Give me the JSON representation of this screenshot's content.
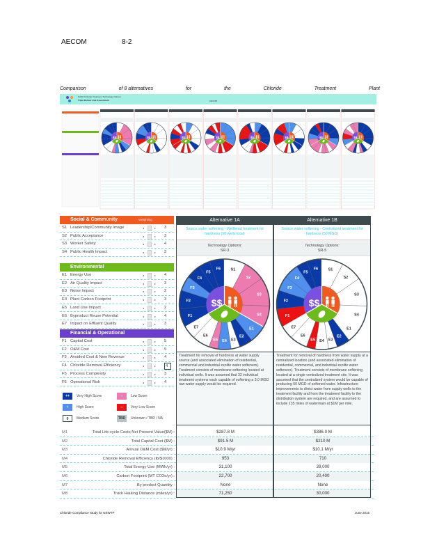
{
  "header": {
    "company": "AECOM",
    "section": "8-2"
  },
  "caption": [
    "Comparison",
    "of 8 alternatives",
    "for",
    "the",
    "Chloride",
    "Treatment",
    "Plant"
  ],
  "thumbnail": {
    "app_title": "NASD Chloride Treatment Technology Options",
    "app_subtitle": "Triple Bottom Line Assessment",
    "brand": "AECOM",
    "alternatives": [
      [
        "M",
        "L",
        "L",
        "L",
        "H",
        "VH",
        "M",
        "H",
        "L",
        "M",
        "M",
        "VH",
        "VH",
        "H",
        "VH",
        "VH",
        "VH"
      ],
      [
        "M",
        "M",
        "M",
        "M",
        "M",
        "VH",
        "M",
        "M",
        "VL",
        "M",
        "M",
        "VL",
        "VH",
        "H",
        "H",
        "VH",
        "VH"
      ],
      [
        "H",
        "M",
        "M",
        "M",
        "VH",
        "M",
        "VL",
        "M",
        "VL",
        "M",
        "VL",
        "VL",
        "VH",
        "VL",
        "M",
        "VL",
        "M"
      ],
      [
        "H",
        "H",
        "H",
        "H",
        "VL",
        "VL",
        "M",
        "VL",
        "M",
        "L",
        "M",
        "L",
        "M",
        "VH",
        "VL",
        "M",
        "VL"
      ],
      [
        "H",
        "VH",
        "VH",
        "VH",
        "VL",
        "VL",
        "M",
        "VL",
        "L",
        "M",
        "M",
        "VH",
        "VL",
        "VL",
        "VL",
        "VH",
        "M"
      ],
      [
        "H",
        "M",
        "M",
        "VH",
        "VH",
        "M",
        "VH",
        "M",
        "VL",
        "M",
        "M",
        "VL",
        "VL",
        "VH",
        "VL",
        "VL",
        "H"
      ],
      [
        "VH",
        "VH",
        "VH",
        "H",
        "L",
        "M",
        "L",
        "L",
        "M",
        "L",
        "L",
        "L",
        "H",
        "VH",
        "VH",
        "VL",
        "VH"
      ],
      [
        "VH",
        "VH",
        "VH",
        "VH",
        "M",
        "VH",
        "L",
        "M",
        "VH",
        "L",
        "M",
        "H",
        "VL",
        "L",
        "M",
        "L",
        "L"
      ]
    ]
  },
  "criteria": {
    "weighting_label": "Weighting",
    "sections": [
      {
        "title": "Social & Community",
        "color": "#f05a1e",
        "items": [
          {
            "code": "S1",
            "label": "Leadership/Community Image",
            "weight": 3
          },
          {
            "code": "S2",
            "label": "Public Acceptance",
            "weight": 3
          },
          {
            "code": "S3",
            "label": "Worker Safety",
            "weight": 4
          },
          {
            "code": "S4",
            "label": "Public Health Impact",
            "weight": 3
          }
        ]
      },
      {
        "title": "Environmental",
        "color": "#6cbb1a",
        "items": [
          {
            "code": "E1",
            "label": "Energy Use",
            "weight": 4
          },
          {
            "code": "E2",
            "label": "Air Quality Impact",
            "weight": 3
          },
          {
            "code": "E3",
            "label": "Noise Impact",
            "weight": 2
          },
          {
            "code": "E4",
            "label": "Plant Carbon Footprint",
            "weight": 3
          },
          {
            "code": "E5",
            "label": "Land Use Impact",
            "weight": 2
          },
          {
            "code": "E6",
            "label": "Byproduct Reuse Potential",
            "weight": 4
          },
          {
            "code": "E7",
            "label": "Impact on Effluent Quality",
            "weight": 3
          }
        ]
      },
      {
        "title": "Financial & Operational",
        "color": "#6a3fd0",
        "items": [
          {
            "code": "F1",
            "label": "Capital Cost",
            "weight": 5
          },
          {
            "code": "F2",
            "label": "O&M Cost",
            "weight": 5
          },
          {
            "code": "F3",
            "label": "Avoided Cost & New Revenue",
            "weight": 4
          },
          {
            "code": "F4",
            "label": "Chloride Removal Efficiency",
            "weight": 4
          },
          {
            "code": "F5",
            "label": "Process Complexity",
            "weight": 3
          },
          {
            "code": "F6",
            "label": "Operational Risk",
            "weight": 4
          }
        ]
      }
    ]
  },
  "legend": [
    {
      "code": "VH",
      "symbol": "++",
      "label": "Very High Score",
      "color": "#0a3aa8"
    },
    {
      "code": "H",
      "symbol": "+",
      "label": "High Score",
      "color": "#4f8fee"
    },
    {
      "code": "M",
      "symbol": "0",
      "label": "Medium Score",
      "color": "#ffffff"
    },
    {
      "code": "L",
      "symbol": "-",
      "label": "Low Score",
      "color": "#ee7bb0"
    },
    {
      "code": "VL",
      "symbol": "--",
      "label": "Very Low Score",
      "color": "#ee1111"
    },
    {
      "code": "TBD",
      "symbol": "TBD",
      "label": "Unknown / TBD / NA",
      "color": "#b8c4c4"
    }
  ],
  "metrics": [
    {
      "code": "M1",
      "label": "Total Life-cycle Costs Net Present Value($M) :"
    },
    {
      "code": "M2",
      "label": "Total Capital Cost ($M) :"
    },
    {
      "code": "M3",
      "label": "Annual O&M Cost ($M/yr) :"
    },
    {
      "code": "M4",
      "label": "Chloride Removal Efficiency (lb/$1000) :"
    },
    {
      "code": "M5",
      "label": "Total Energy Use (MWh/yr) :"
    },
    {
      "code": "M6",
      "label": "Carbon Footprint (MT CO2e/yr) :"
    },
    {
      "code": "M7",
      "label": "By product Quantity :"
    },
    {
      "code": "M8",
      "label": "Truck Hauling Distance (miles/yr) :"
    }
  ],
  "alternatives": [
    {
      "name": "Alternative 1A",
      "title": "Source water softening - Wellhead treatment for hardness (50 wells total)",
      "tech_label": "Technology Options:",
      "tech": "SR-3",
      "scores": [
        "M",
        "L",
        "L",
        "L",
        "H",
        "VH",
        "M",
        "H",
        "L",
        "M",
        "M",
        "VH",
        "VH",
        "H",
        "VH",
        "VH",
        "VH"
      ],
      "description": "Treatment for removal of hardness at water supply source (and associated elimination of residential, commercial and industrial zeolite water softeners). Treatment consists of membrane softening located at individual wells. It was assumed that 32 individual treatment systems each capable of softening a 3.0 MGD raw water supply would be required.",
      "metric_values": [
        "$287.8 M",
        "$91.5 M",
        "$10.9 M/yr",
        "953",
        "31,100",
        "22,700",
        "None",
        "71,250"
      ]
    },
    {
      "name": "Alternative 1B",
      "title": "Source water softening - Centralized treatment for hardness (50 MGD)",
      "tech_label": "Technology Options:",
      "tech": "SR-5",
      "scores": [
        "M",
        "M",
        "M",
        "M",
        "M",
        "VH",
        "M",
        "M",
        "VL",
        "M",
        "M",
        "VL",
        "VH",
        "H",
        "H",
        "VH",
        "VH"
      ],
      "description": "Treatment for removal of hardness from water supply at a centralized location (and associated elimination of residential, commercial, and industrial zeolite water softeners). Treatment consists of membrane softening located at a single centralized treatment site. It was assumed that the centralized system would be capable of producing 50 MGD of softened water. Infrastructure improvements to direct water from supply wells to the treatment facility and from the treatment facility to the distribution system are required, and are assumed to include 135 miles of watermain at $1M per mile.",
      "metric_values": [
        "$386.0 M",
        "$210 M",
        "$10.1 M/yr",
        "710",
        "39,000",
        "20,400",
        "None",
        "30,000"
      ]
    }
  ],
  "pie_center": {
    "financial": "$$",
    "social_color": "#f05a1e",
    "env_color": "#6cbb1a",
    "fin_color": "#7b4fe0"
  },
  "footer": {
    "left": "Chloride Compliance Study for NSWTP",
    "right": "June 2015"
  }
}
